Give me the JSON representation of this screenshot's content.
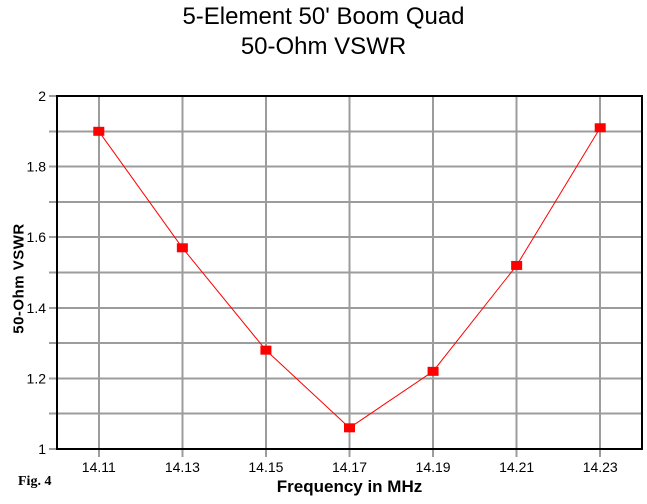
{
  "title": {
    "line1": "5-Element 50' Boom Quad",
    "line2": "50-Ohm VSWR"
  },
  "figure_label": "Fig. 4",
  "colors": {
    "line": "#ff0000",
    "marker": "#ff0000",
    "grid": "#9c9c9c",
    "frame": "#000000",
    "text": "#000000",
    "background": "#ffffff"
  },
  "chart_data": {
    "type": "line",
    "title": "5-Element 50' Boom Quad",
    "subtitle": "50-Ohm VSWR",
    "xlabel": "Frequency in MHz",
    "ylabel": "50-Ohm VSWR",
    "x": [
      14.11,
      14.13,
      14.15,
      14.17,
      14.19,
      14.21,
      14.23
    ],
    "y": [
      1.9,
      1.57,
      1.28,
      1.06,
      1.22,
      1.52,
      1.91
    ],
    "xlim": [
      14.1,
      14.24
    ],
    "ylim": [
      1.0,
      2.0
    ],
    "x_ticks": {
      "values": [
        14.11,
        14.13,
        14.15,
        14.17,
        14.19,
        14.21,
        14.23
      ],
      "labels": [
        "14.11",
        "14.13",
        "14.15",
        "14.17",
        "14.19",
        "14.21",
        "14.23"
      ]
    },
    "y_ticks": {
      "values": [
        2.0,
        1.8,
        1.6,
        1.4,
        1.2,
        1.0
      ],
      "labels": [
        "2",
        "1.8",
        "1.6",
        "1.4",
        "1.2",
        "1"
      ]
    },
    "y_gridline_values": [
      1.0,
      1.1,
      1.2,
      1.3,
      1.4,
      1.5,
      1.6,
      1.7,
      1.8,
      1.9,
      2.0
    ],
    "grid": "on",
    "legend": "none",
    "marker": "square",
    "series_name": "50-Ohm VSWR"
  }
}
